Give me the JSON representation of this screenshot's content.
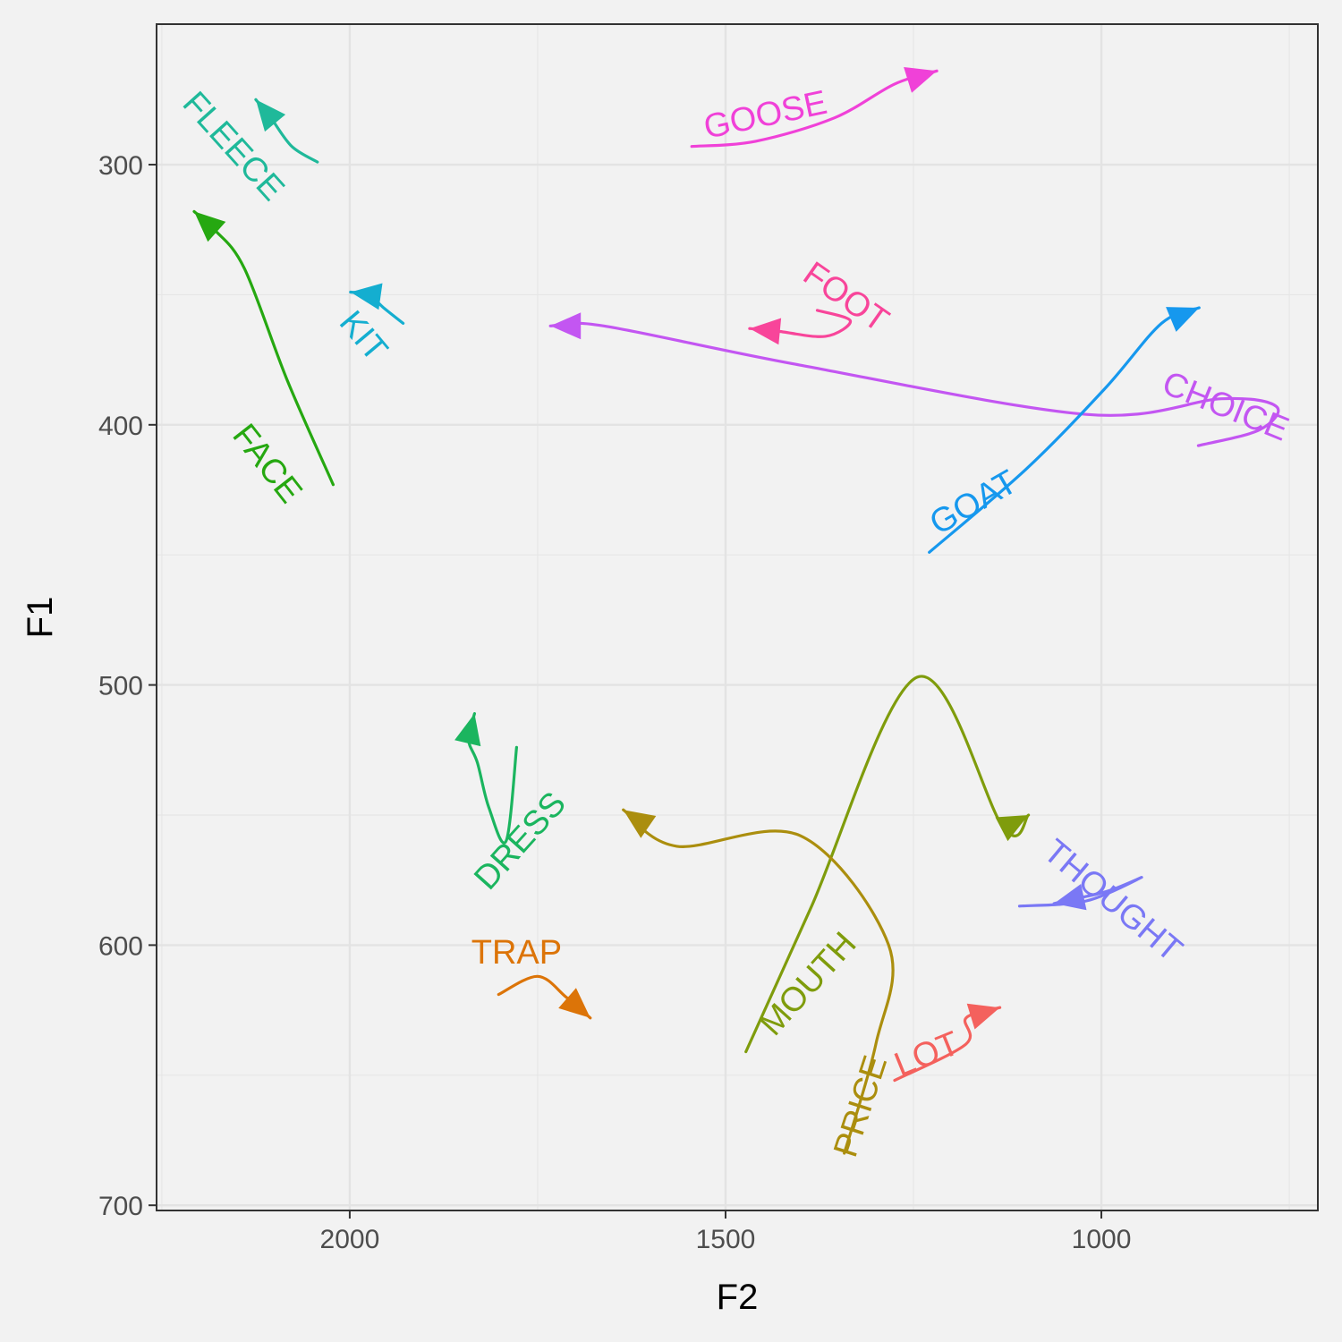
{
  "chart_data": {
    "type": "line",
    "xlabel": "F2",
    "ylabel": "F1",
    "x_reversed": true,
    "y_reversed": true,
    "xlim": [
      2257,
      712
    ],
    "ylim": [
      246,
      702
    ],
    "x_ticks": [
      2000,
      1500,
      1000
    ],
    "y_ticks": [
      300,
      400,
      500,
      600,
      700
    ],
    "grid": true,
    "legend": "none",
    "colors": {
      "FLEECE": "#1fb99a",
      "FACE": "#26a811",
      "KIT": "#14aed0",
      "GOOSE": "#f041d8",
      "FOOT": "#f8459a",
      "CHOICE": "#c356f2",
      "GOAT": "#1698ee",
      "DRESS": "#1bb55f",
      "TRAP": "#dc7408",
      "MOUTH": "#7f9c0c",
      "PRICE": "#ab8e0e",
      "LOT": "#f4615d",
      "THOUGHT": "#7a78f5"
    },
    "series": [
      {
        "name": "FLEECE",
        "points": [
          [
            2043,
            299
          ],
          [
            2077,
            293
          ],
          [
            2105,
            282
          ],
          [
            2125,
            275
          ]
        ],
        "label_at": [
          2155,
          293
        ],
        "label_angle": 48
      },
      {
        "name": "FACE",
        "points": [
          [
            2022,
            423
          ],
          [
            2083,
            383
          ],
          [
            2140,
            340
          ],
          [
            2180,
            325
          ],
          [
            2207,
            318
          ]
        ],
        "label_at": [
          2110,
          415
        ],
        "label_angle": 52
      },
      {
        "name": "KIT",
        "points": [
          [
            1929,
            361
          ],
          [
            1955,
            355
          ],
          [
            1975,
            350
          ],
          [
            1999,
            349
          ]
        ],
        "label_at": [
          1982,
          366
        ],
        "label_angle": 50
      },
      {
        "name": "GOOSE",
        "points": [
          [
            1545,
            293
          ],
          [
            1460,
            291
          ],
          [
            1355,
            282
          ],
          [
            1275,
            269
          ],
          [
            1219,
            264
          ]
        ],
        "label_at": [
          1447,
          281
        ],
        "label_angle": -12
      },
      {
        "name": "FOOT",
        "points": [
          [
            1378,
            356
          ],
          [
            1334,
            360
          ],
          [
            1367,
            366
          ],
          [
            1431,
            364
          ],
          [
            1468,
            363
          ]
        ],
        "label_at": [
          1340,
          351
        ],
        "label_angle": 35
      },
      {
        "name": "CHOICE",
        "points": [
          [
            871,
            408
          ],
          [
            790,
            402
          ],
          [
            767,
            393
          ],
          [
            840,
            390
          ],
          [
            1020,
            396
          ],
          [
            1402,
            377
          ],
          [
            1662,
            362
          ],
          [
            1733,
            362
          ]
        ],
        "label_at": [
          835,
          393
        ],
        "label_angle": 22
      },
      {
        "name": "GOAT",
        "points": [
          [
            1229,
            449
          ],
          [
            1100,
            417
          ],
          [
            995,
            386
          ],
          [
            920,
            361
          ],
          [
            870,
            355
          ]
        ],
        "label_at": [
          1170,
          430
        ],
        "label_angle": -30
      },
      {
        "name": "DRESS",
        "points": [
          [
            1778,
            524
          ],
          [
            1792,
            560
          ],
          [
            1815,
            547
          ],
          [
            1830,
            530
          ],
          [
            1842,
            521
          ],
          [
            1834,
            511
          ]
        ],
        "label_at": [
          1773,
          560
        ],
        "label_angle": -48
      },
      {
        "name": "TRAP",
        "points": [
          [
            1802,
            619
          ],
          [
            1750,
            612
          ],
          [
            1712,
            620
          ],
          [
            1680,
            628
          ]
        ],
        "label_at": [
          1778,
          603
        ],
        "label_angle": 0
      },
      {
        "name": "MOUTH",
        "points": [
          [
            1473,
            641
          ],
          [
            1387,
            586
          ],
          [
            1245,
            497
          ],
          [
            1130,
            555
          ],
          [
            1097,
            550
          ]
        ],
        "label_at": [
          1390,
          615
        ],
        "label_angle": -48
      },
      {
        "name": "PRICE",
        "points": [
          [
            1342,
            680
          ],
          [
            1300,
            638
          ],
          [
            1283,
            600
          ],
          [
            1400,
            558
          ],
          [
            1565,
            562
          ],
          [
            1636,
            548
          ]
        ],
        "label_at": [
          1320,
          662
        ],
        "label_angle": -72
      },
      {
        "name": "LOT",
        "points": [
          [
            1275,
            652
          ],
          [
            1180,
            638
          ],
          [
            1180,
            628
          ],
          [
            1135,
            624
          ]
        ],
        "label_at": [
          1232,
          642
        ],
        "label_angle": -22
      },
      {
        "name": "THOUGHT",
        "points": [
          [
            1109,
            585
          ],
          [
            1020,
            583
          ],
          [
            947,
            574
          ],
          [
            989,
            579
          ],
          [
            1031,
            582
          ],
          [
            1063,
            584
          ]
        ],
        "label_at": [
          985,
          583
        ],
        "label_angle": 40
      }
    ]
  }
}
